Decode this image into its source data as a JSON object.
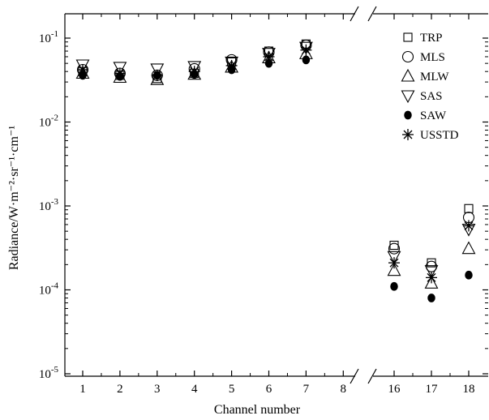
{
  "chart_data": {
    "type": "scatter",
    "xlabel": "Channel number",
    "ylabel": "Radiance/W·m⁻²·sr⁻¹·cm⁻¹",
    "yscale": "log",
    "ylim": [
      1e-05,
      0.15
    ],
    "axis_break": "between 8 and 16",
    "x": [
      1,
      2,
      3,
      4,
      5,
      6,
      7,
      16,
      17,
      18
    ],
    "xtick_labels": [
      "1",
      "2",
      "3",
      "4",
      "5",
      "6",
      "7",
      "8",
      "16",
      "17",
      "18"
    ],
    "ytick_labels": [
      {
        "base": "10",
        "exp": "-5"
      },
      {
        "base": "10",
        "exp": "-4"
      },
      {
        "base": "10",
        "exp": "-3"
      },
      {
        "base": "10",
        "exp": "-2"
      },
      {
        "base": "10",
        "exp": "-1"
      }
    ],
    "legend_position": "top-right",
    "series": [
      {
        "name": "TRP",
        "marker": "square",
        "values": [
          0.04,
          0.036,
          0.033,
          0.038,
          0.052,
          0.07,
          0.085,
          0.00034,
          0.00021,
          0.00093
        ]
      },
      {
        "name": "MLS",
        "marker": "circle",
        "values": [
          0.042,
          0.038,
          0.036,
          0.043,
          0.055,
          0.068,
          0.082,
          0.00031,
          0.00019,
          0.00073
        ]
      },
      {
        "name": "MLW",
        "marker": "triangle-up",
        "values": [
          0.038,
          0.034,
          0.032,
          0.037,
          0.045,
          0.058,
          0.065,
          0.00017,
          0.00012,
          0.00031
        ]
      },
      {
        "name": "SAS",
        "marker": "triangle-down",
        "values": [
          0.048,
          0.045,
          0.043,
          0.046,
          0.052,
          0.066,
          0.078,
          0.00025,
          0.00017,
          0.00053
        ]
      },
      {
        "name": "SAW",
        "marker": "filled-circle",
        "values": [
          0.036,
          0.035,
          0.036,
          0.037,
          0.042,
          0.05,
          0.055,
          0.00011,
          8e-05,
          0.00015
        ]
      },
      {
        "name": "USSTD",
        "marker": "asterisk",
        "values": [
          0.042,
          0.038,
          0.036,
          0.04,
          0.047,
          0.06,
          0.072,
          0.00021,
          0.00014,
          0.00058
        ]
      }
    ]
  }
}
